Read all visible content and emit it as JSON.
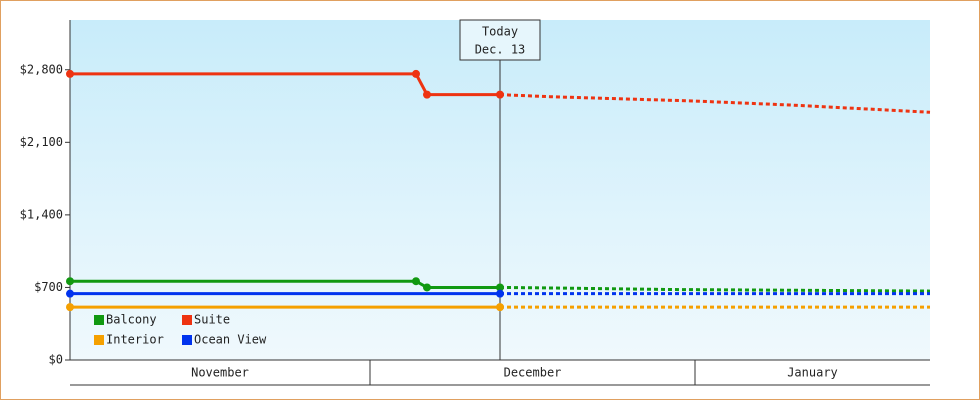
{
  "chart_data": {
    "type": "line",
    "ylim": [
      0,
      3280
    ],
    "yticks": [
      {
        "value": 0,
        "label": "$0"
      },
      {
        "value": 700,
        "label": "$700"
      },
      {
        "value": 1400,
        "label": "$1,400"
      },
      {
        "value": 2100,
        "label": "$2,100"
      },
      {
        "value": 2800,
        "label": "$2,800"
      }
    ],
    "xlim": [
      0,
      86
    ],
    "months": [
      {
        "label": "November",
        "start": 0,
        "end": 30
      },
      {
        "label": "December",
        "start": 30,
        "end": 62.5
      },
      {
        "label": "January",
        "start": 62.5,
        "end": 86
      }
    ],
    "today": {
      "x": 43,
      "label": [
        "Today",
        "Dec. 13"
      ]
    },
    "series": [
      {
        "name": "Balcony",
        "color": "#119911",
        "x": [
          0,
          34.6,
          35.7,
          43
        ],
        "values": [
          760,
          760,
          700,
          700
        ],
        "forecast": {
          "x": [
            43,
            48,
            60,
            86
          ],
          "values": [
            700,
            695,
            680,
            665
          ]
        }
      },
      {
        "name": "Suite",
        "color": "#ee3311",
        "x": [
          0,
          34.6,
          35.7,
          43
        ],
        "values": [
          2760,
          2760,
          2560,
          2560
        ],
        "forecast": {
          "x": [
            43,
            48,
            62,
            72,
            86
          ],
          "values": [
            2560,
            2540,
            2500,
            2460,
            2390
          ]
        }
      },
      {
        "name": "Interior",
        "color": "#f5a000",
        "x": [
          0,
          43
        ],
        "values": [
          510,
          510
        ],
        "forecast": {
          "x": [
            43,
            86
          ],
          "values": [
            510,
            510
          ]
        }
      },
      {
        "name": "Ocean View",
        "color": "#0033ee",
        "x": [
          0,
          43
        ],
        "values": [
          640,
          640
        ],
        "forecast": {
          "x": [
            43,
            86
          ],
          "values": [
            640,
            640
          ]
        }
      }
    ]
  }
}
